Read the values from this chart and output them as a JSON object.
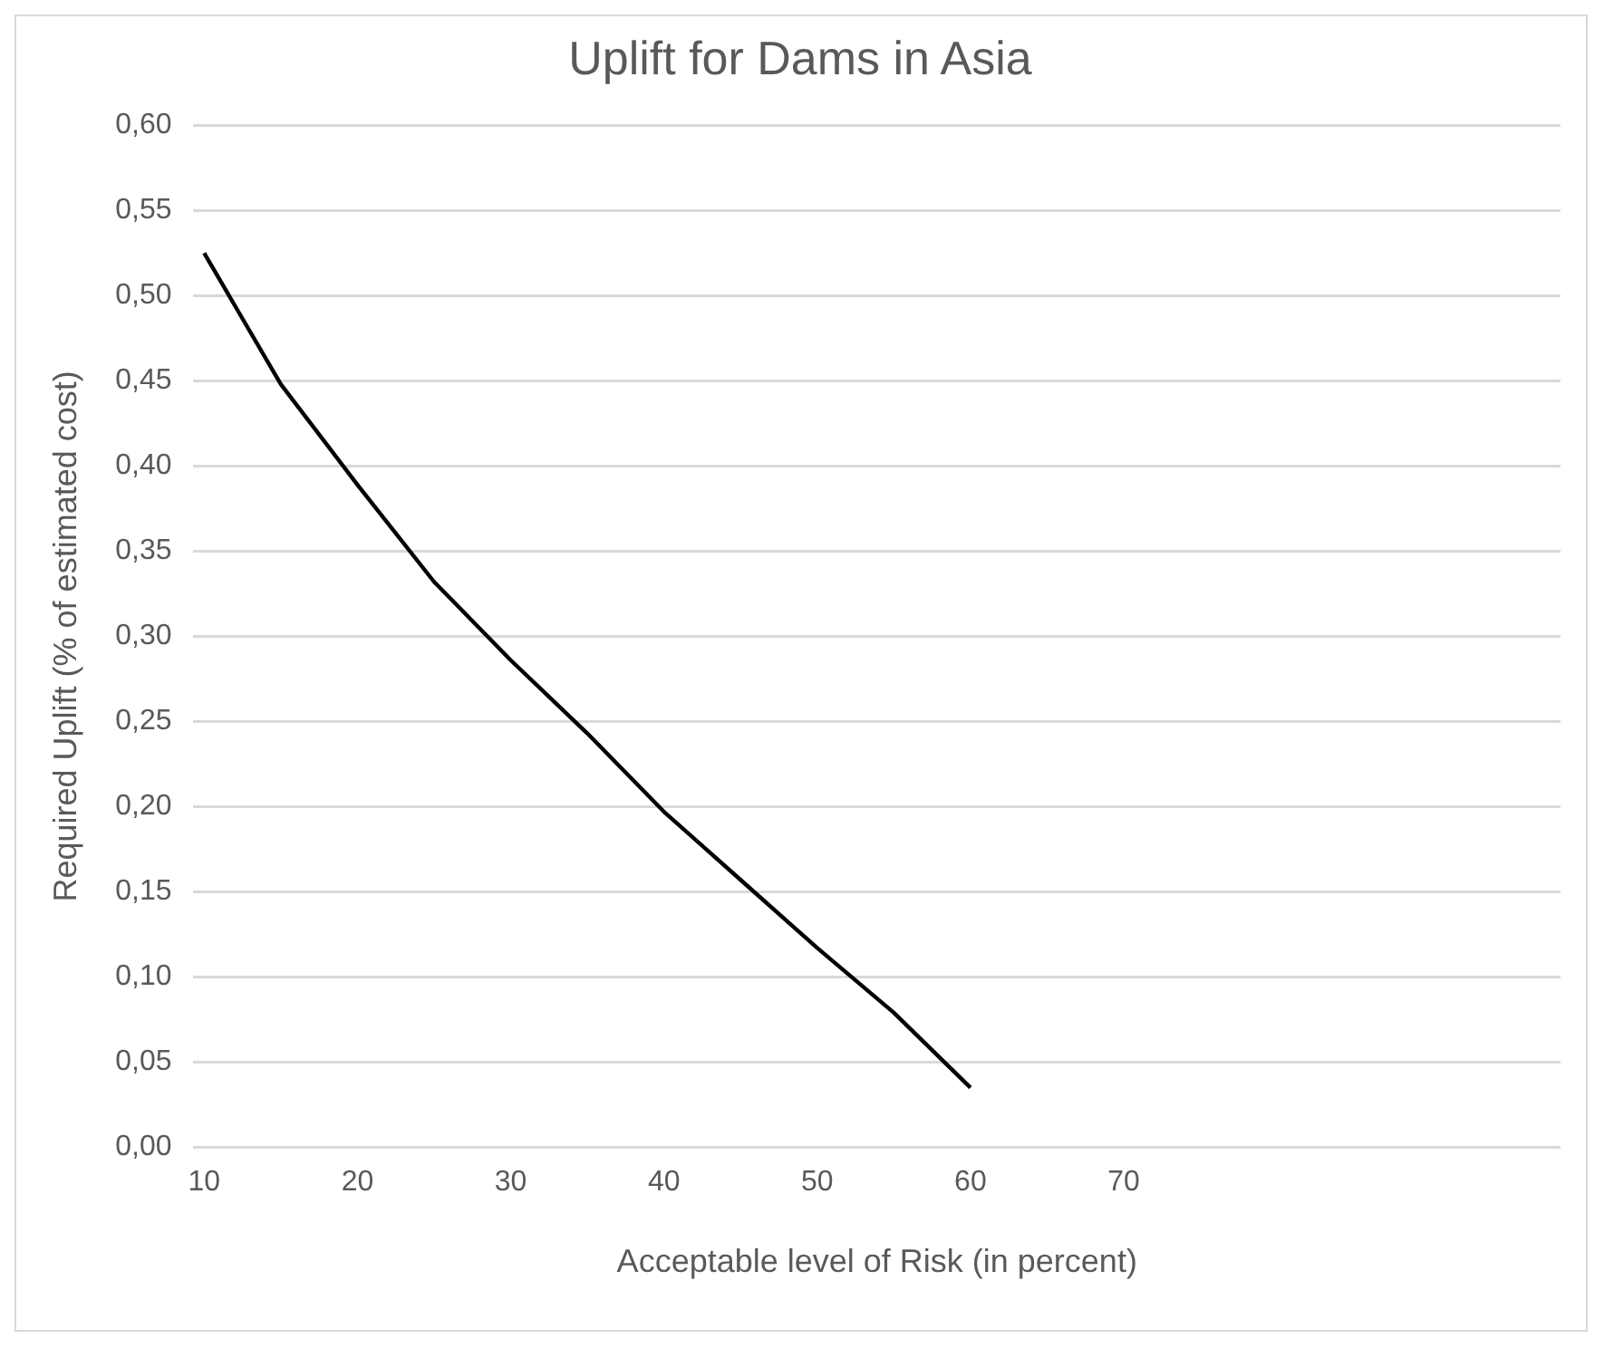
{
  "chart_data": {
    "type": "line",
    "title": "Uplift for Dams in Asia",
    "xlabel": "Acceptable level of Risk (in percent)",
    "ylabel": "Required Uplift (% of estimated cost)",
    "x": [
      10,
      15,
      20,
      25,
      30,
      35,
      40,
      45,
      50,
      55,
      60
    ],
    "series": [
      {
        "color": "#000000",
        "values": [
          0.525,
          0.448,
          0.389,
          0.332,
          0.286,
          0.243,
          0.197,
          0.157,
          0.117,
          0.079,
          0.035
        ]
      }
    ],
    "xlim": [
      9.3,
      98.5
    ],
    "xticks": [
      10,
      20,
      30,
      40,
      50,
      60,
      70
    ],
    "ylim": [
      0,
      0.6
    ],
    "yticks": [
      {
        "value": 0,
        "label": "0,00"
      },
      {
        "value": 0.05,
        "label": "0,05"
      },
      {
        "value": 0.1,
        "label": "0,10"
      },
      {
        "value": 0.15,
        "label": "0,15"
      },
      {
        "value": 0.2,
        "label": "0,20"
      },
      {
        "value": 0.25,
        "label": "0,25"
      },
      {
        "value": 0.3,
        "label": "0,30"
      },
      {
        "value": 0.35,
        "label": "0,35"
      },
      {
        "value": 0.4,
        "label": "0,40"
      },
      {
        "value": 0.45,
        "label": "0,45"
      },
      {
        "value": 0.5,
        "label": "0,50"
      },
      {
        "value": 0.55,
        "label": "0,55"
      },
      {
        "value": 0.6,
        "label": "0,60"
      }
    ],
    "grid": "y",
    "legend": false,
    "marker": "none",
    "line_style": "solid"
  }
}
